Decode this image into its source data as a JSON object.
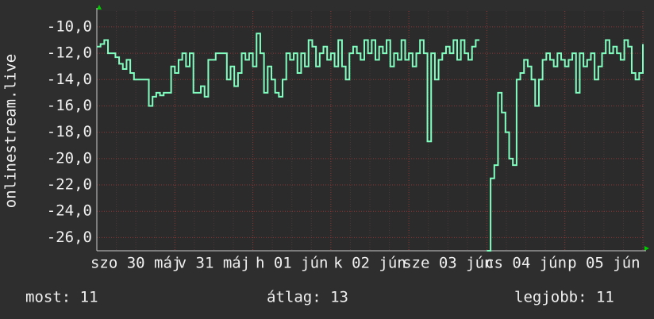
{
  "chart_data": {
    "type": "line",
    "y_label": "onlinestream.live",
    "xticks": [
      "szo 30 máj",
      "v 31 máj",
      "h 01 jún",
      "k 02 jún",
      "sze 03 jún",
      "cs 04 jún",
      "p 05 jún"
    ],
    "ylim": [
      -27,
      -8.8
    ],
    "yticks": [
      {
        "value": -10,
        "label": "-10,0"
      },
      {
        "value": -12,
        "label": "-12,0"
      },
      {
        "value": -14,
        "label": "-14,0"
      },
      {
        "value": -16,
        "label": "-16,0"
      },
      {
        "value": -18,
        "label": "-18,0"
      },
      {
        "value": -20,
        "label": "-20,0"
      },
      {
        "value": -22,
        "label": "-22,0"
      },
      {
        "value": -24,
        "label": "-24,0"
      },
      {
        "value": -26,
        "label": "-26,0"
      }
    ],
    "grid": true,
    "color": "#80ffc0",
    "values": [
      -11.5,
      -11.3,
      -11,
      -12,
      -12,
      -12.3,
      -12.8,
      -13.2,
      -12.5,
      -13.5,
      -14,
      -14,
      -14,
      -14,
      -16,
      -15.3,
      -15,
      -15.2,
      -15,
      -15,
      -13,
      -13.5,
      -12.5,
      -12,
      -13,
      -12,
      -15,
      -15,
      -14.5,
      -15.3,
      -12.5,
      -12.5,
      -12,
      -12,
      -12,
      -14,
      -13,
      -14.5,
      -13.5,
      -12,
      -12.5,
      -12,
      -13,
      -10.5,
      -12,
      -15,
      -13,
      -14,
      -15,
      -15.3,
      -14,
      -12,
      -12.5,
      -12,
      -13.5,
      -12,
      -13,
      -11,
      -11.5,
      -13,
      -12,
      -11.5,
      -12.5,
      -12,
      -13,
      -11,
      -13,
      -14,
      -12,
      -11.5,
      -12,
      -12.5,
      -11,
      -12,
      -11,
      -12.5,
      -11.5,
      -12,
      -11,
      -13,
      -12,
      -12.5,
      -11,
      -12.5,
      -12,
      -13,
      -12,
      -11,
      -12,
      -18.7,
      -12,
      -14,
      -12.5,
      -12,
      -11.5,
      -12,
      -11,
      -12.5,
      -11,
      -12,
      -12.5,
      -11.5,
      -11,
      -11,
      null,
      -27,
      -21.5,
      -20.5,
      -15,
      -16.5,
      -18,
      -20,
      -20.5,
      -14,
      -13.5,
      -12.5,
      -13,
      -14,
      -16,
      -14,
      -12.5,
      -12,
      -12.5,
      -13,
      -12,
      -12.5,
      -13,
      -12.5,
      -12,
      -15,
      -12,
      -13,
      -12.5,
      -12,
      -14,
      -13,
      -12,
      -11,
      -12,
      -11.5,
      -12,
      -12.5,
      -11,
      -11.5,
      -13.5,
      -14,
      -13.5,
      -11.3
    ],
    "stats": [
      "most: 11",
      "átlag: 13",
      "legjobb: 11"
    ]
  }
}
